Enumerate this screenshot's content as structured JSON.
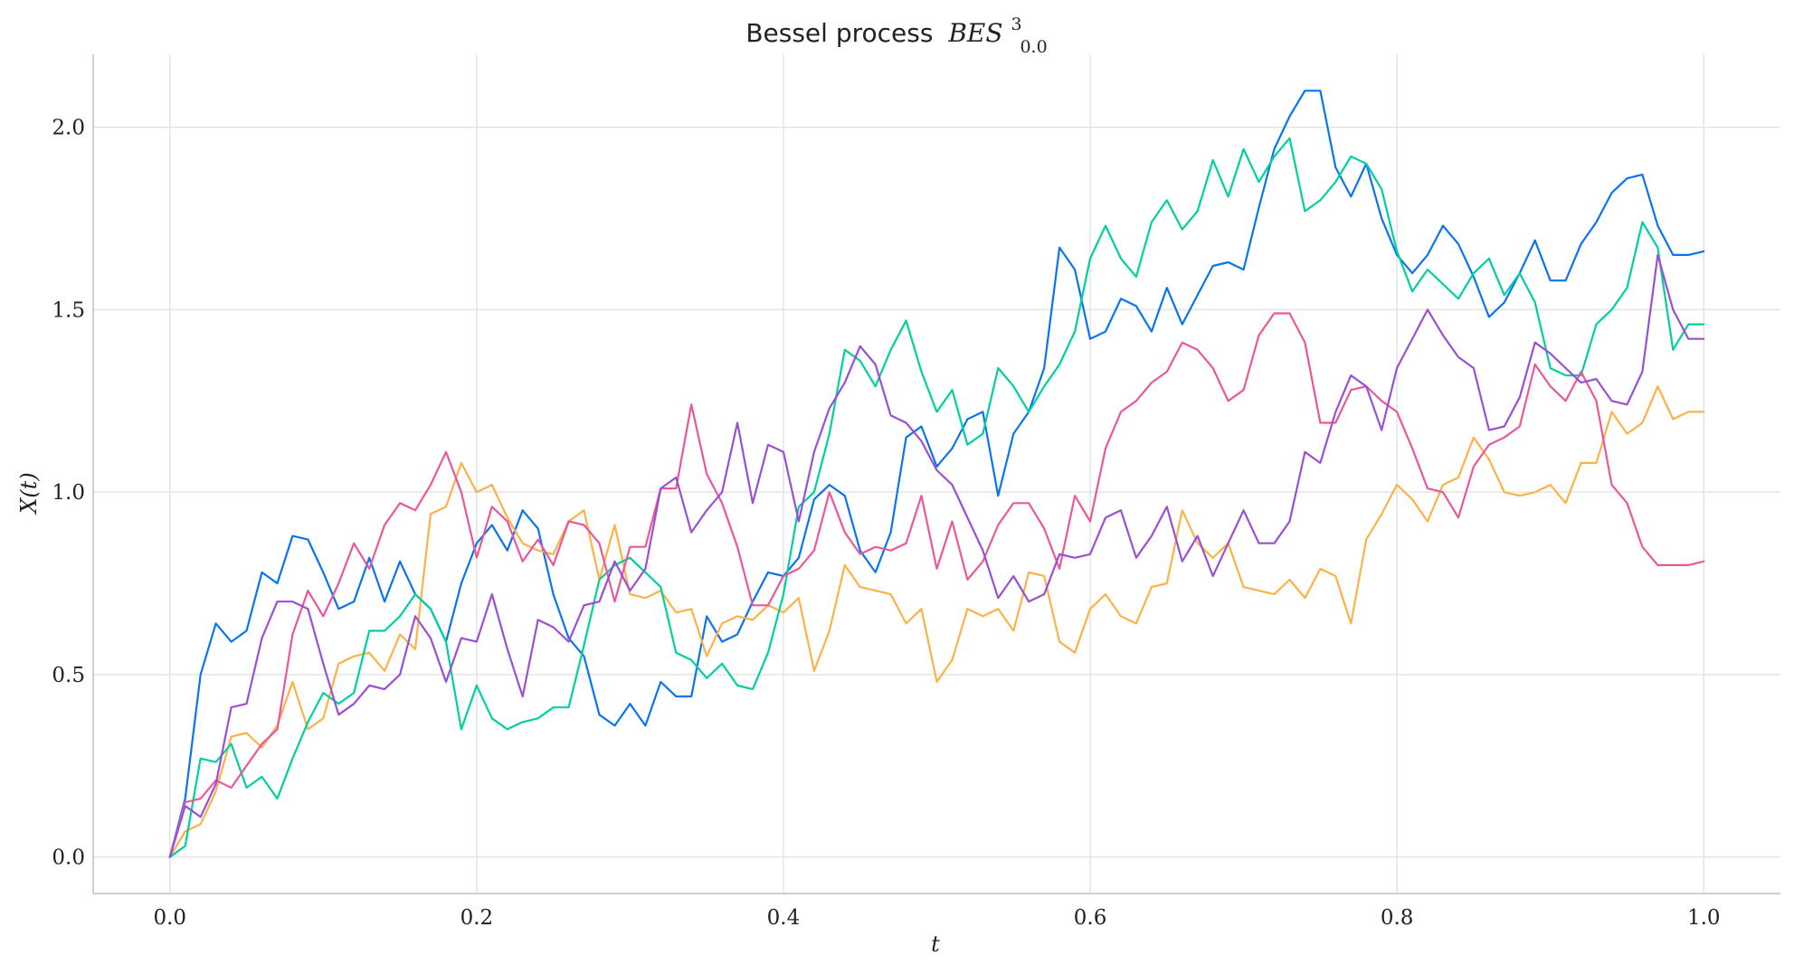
{
  "chart_data": {
    "type": "line",
    "title": "Bessel process",
    "title_math": {
      "base": "BES",
      "sup": "3",
      "sub": "0.0"
    },
    "xlabel": "t",
    "ylabel": "X(t)",
    "xlim": [
      -0.05,
      1.05
    ],
    "ylim": [
      -0.1,
      2.2
    ],
    "xticks": [
      0.0,
      0.2,
      0.4,
      0.6,
      0.8,
      1.0
    ],
    "yticks": [
      0.0,
      0.5,
      1.0,
      1.5,
      2.0
    ],
    "xtick_labels": [
      "0.0",
      "0.2",
      "0.4",
      "0.6",
      "0.8",
      "1.0"
    ],
    "ytick_labels": [
      "0.0",
      "0.5",
      "1.0",
      "1.5",
      "2.0"
    ],
    "grid": true,
    "x": [
      0.0,
      0.01,
      0.02,
      0.03,
      0.04,
      0.05,
      0.06,
      0.07,
      0.08,
      0.09,
      0.1,
      0.11,
      0.12,
      0.13,
      0.14,
      0.15,
      0.16,
      0.17,
      0.18,
      0.19,
      0.2,
      0.21,
      0.22,
      0.23,
      0.24,
      0.25,
      0.26,
      0.27,
      0.28,
      0.29,
      0.3,
      0.31,
      0.32,
      0.33,
      0.34,
      0.35,
      0.36,
      0.37,
      0.38,
      0.39,
      0.4,
      0.41,
      0.42,
      0.43,
      0.44,
      0.45,
      0.46,
      0.47,
      0.48,
      0.49,
      0.5,
      0.51,
      0.52,
      0.53,
      0.54,
      0.55,
      0.56,
      0.57,
      0.58,
      0.59,
      0.6,
      0.61,
      0.62,
      0.63,
      0.64,
      0.65,
      0.66,
      0.67,
      0.68,
      0.69,
      0.7,
      0.71,
      0.72,
      0.73,
      0.74,
      0.75,
      0.76,
      0.77,
      0.78,
      0.79,
      0.8,
      0.81,
      0.82,
      0.83,
      0.84,
      0.85,
      0.86,
      0.87,
      0.88,
      0.89,
      0.9,
      0.91,
      0.92,
      0.93,
      0.94,
      0.95,
      0.96,
      0.97,
      0.98,
      0.99,
      1.0
    ],
    "series": [
      {
        "color": "#0a74f0",
        "values": [
          0.0,
          0.16,
          0.5,
          0.64,
          0.59,
          0.62,
          0.78,
          0.75,
          0.88,
          0.87,
          0.78,
          0.68,
          0.7,
          0.82,
          0.7,
          0.81,
          0.72,
          0.68,
          0.59,
          0.75,
          0.86,
          0.91,
          0.84,
          0.95,
          0.9,
          0.72,
          0.6,
          0.55,
          0.39,
          0.36,
          0.42,
          0.36,
          0.48,
          0.44,
          0.44,
          0.66,
          0.59,
          0.61,
          0.7,
          0.78,
          0.77,
          0.82,
          0.98,
          1.02,
          0.99,
          0.84,
          0.78,
          0.89,
          1.15,
          1.18,
          1.07,
          1.12,
          1.2,
          1.22,
          0.99,
          1.16,
          1.22,
          1.34,
          1.67,
          1.61,
          1.42,
          1.44,
          1.53,
          1.51,
          1.44,
          1.56,
          1.46,
          1.54,
          1.62,
          1.63,
          1.61,
          1.78,
          1.94,
          2.03,
          2.1,
          2.1,
          1.89,
          1.81,
          1.9,
          1.75,
          1.65,
          1.6,
          1.65,
          1.73,
          1.68,
          1.59,
          1.48,
          1.52,
          1.6,
          1.69,
          1.58,
          1.58,
          1.68,
          1.74,
          1.82,
          1.86,
          1.87,
          1.73,
          1.65,
          1.65,
          1.66
        ]
      },
      {
        "color": "#fdb147",
        "values": [
          0.0,
          0.07,
          0.09,
          0.18,
          0.33,
          0.34,
          0.3,
          0.36,
          0.48,
          0.35,
          0.38,
          0.53,
          0.55,
          0.56,
          0.51,
          0.61,
          0.57,
          0.94,
          0.96,
          1.08,
          1.0,
          1.02,
          0.93,
          0.86,
          0.84,
          0.83,
          0.92,
          0.95,
          0.76,
          0.91,
          0.72,
          0.71,
          0.73,
          0.67,
          0.68,
          0.55,
          0.64,
          0.66,
          0.65,
          0.69,
          0.67,
          0.71,
          0.51,
          0.62,
          0.8,
          0.74,
          0.73,
          0.72,
          0.64,
          0.68,
          0.48,
          0.54,
          0.68,
          0.66,
          0.68,
          0.62,
          0.78,
          0.77,
          0.59,
          0.56,
          0.68,
          0.72,
          0.66,
          0.64,
          0.74,
          0.75,
          0.95,
          0.86,
          0.82,
          0.86,
          0.74,
          0.73,
          0.72,
          0.76,
          0.71,
          0.79,
          0.77,
          0.64,
          0.87,
          0.94,
          1.02,
          0.98,
          0.92,
          1.02,
          1.04,
          1.15,
          1.09,
          1.0,
          0.99,
          1.0,
          1.02,
          0.97,
          1.08,
          1.08,
          1.22,
          1.16,
          1.19,
          1.29,
          1.2,
          1.22,
          1.22
        ]
      },
      {
        "color": "#00d09e",
        "values": [
          0.0,
          0.03,
          0.27,
          0.26,
          0.31,
          0.19,
          0.22,
          0.16,
          0.27,
          0.37,
          0.45,
          0.42,
          0.45,
          0.62,
          0.62,
          0.66,
          0.72,
          0.68,
          0.59,
          0.35,
          0.47,
          0.38,
          0.35,
          0.37,
          0.38,
          0.41,
          0.41,
          0.58,
          0.76,
          0.8,
          0.82,
          0.78,
          0.74,
          0.56,
          0.54,
          0.49,
          0.53,
          0.47,
          0.46,
          0.56,
          0.72,
          0.96,
          1.0,
          1.16,
          1.39,
          1.36,
          1.29,
          1.39,
          1.47,
          1.33,
          1.22,
          1.28,
          1.13,
          1.16,
          1.34,
          1.29,
          1.22,
          1.29,
          1.35,
          1.44,
          1.64,
          1.73,
          1.64,
          1.59,
          1.74,
          1.8,
          1.72,
          1.77,
          1.91,
          1.81,
          1.94,
          1.85,
          1.92,
          1.97,
          1.77,
          1.8,
          1.85,
          1.92,
          1.9,
          1.83,
          1.66,
          1.55,
          1.61,
          1.57,
          1.53,
          1.6,
          1.64,
          1.54,
          1.6,
          1.52,
          1.34,
          1.32,
          1.32,
          1.46,
          1.5,
          1.56,
          1.74,
          1.67,
          1.39,
          1.46,
          1.46
        ]
      },
      {
        "color": "#e9579c",
        "values": [
          0.0,
          0.15,
          0.16,
          0.21,
          0.19,
          0.25,
          0.31,
          0.35,
          0.61,
          0.73,
          0.66,
          0.75,
          0.86,
          0.79,
          0.91,
          0.97,
          0.95,
          1.02,
          1.11,
          1.0,
          0.82,
          0.96,
          0.92,
          0.81,
          0.87,
          0.8,
          0.92,
          0.91,
          0.86,
          0.7,
          0.85,
          0.85,
          1.01,
          1.01,
          1.24,
          1.05,
          0.97,
          0.85,
          0.69,
          0.69,
          0.77,
          0.79,
          0.84,
          1.0,
          0.89,
          0.83,
          0.85,
          0.84,
          0.86,
          0.99,
          0.79,
          0.92,
          0.76,
          0.81,
          0.91,
          0.97,
          0.97,
          0.9,
          0.79,
          0.99,
          0.92,
          1.12,
          1.22,
          1.25,
          1.3,
          1.33,
          1.41,
          1.39,
          1.34,
          1.25,
          1.28,
          1.43,
          1.49,
          1.49,
          1.41,
          1.19,
          1.19,
          1.28,
          1.29,
          1.25,
          1.22,
          1.12,
          1.01,
          1.0,
          0.93,
          1.07,
          1.13,
          1.15,
          1.18,
          1.35,
          1.29,
          1.25,
          1.33,
          1.25,
          1.02,
          0.97,
          0.85,
          0.8,
          0.8,
          0.8,
          0.81
        ]
      },
      {
        "color": "#9b4fd3",
        "values": [
          0.0,
          0.14,
          0.11,
          0.2,
          0.41,
          0.42,
          0.6,
          0.7,
          0.7,
          0.68,
          0.53,
          0.39,
          0.42,
          0.47,
          0.46,
          0.5,
          0.66,
          0.6,
          0.48,
          0.6,
          0.59,
          0.72,
          0.57,
          0.44,
          0.65,
          0.63,
          0.59,
          0.69,
          0.7,
          0.81,
          0.73,
          0.79,
          1.01,
          1.04,
          0.89,
          0.95,
          1.0,
          1.19,
          0.97,
          1.13,
          1.11,
          0.92,
          1.11,
          1.23,
          1.3,
          1.4,
          1.35,
          1.21,
          1.19,
          1.14,
          1.06,
          1.02,
          0.93,
          0.84,
          0.71,
          0.77,
          0.7,
          0.72,
          0.83,
          0.82,
          0.83,
          0.93,
          0.95,
          0.82,
          0.88,
          0.96,
          0.81,
          0.88,
          0.77,
          0.86,
          0.95,
          0.86,
          0.86,
          0.92,
          1.11,
          1.08,
          1.22,
          1.32,
          1.29,
          1.17,
          1.34,
          1.42,
          1.5,
          1.43,
          1.37,
          1.34,
          1.17,
          1.18,
          1.26,
          1.41,
          1.38,
          1.34,
          1.3,
          1.31,
          1.25,
          1.24,
          1.33,
          1.65,
          1.5,
          1.42,
          1.42
        ]
      }
    ]
  }
}
